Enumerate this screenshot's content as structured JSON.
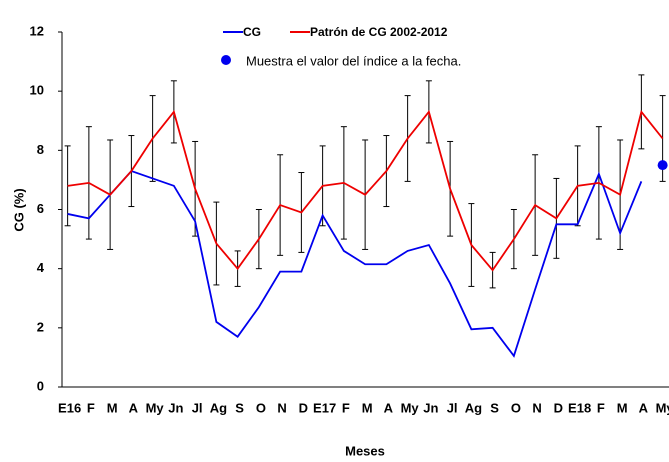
{
  "chart_data": {
    "type": "line",
    "y_label": "CG (%)",
    "x_label": "Meses",
    "categories": [
      "E16",
      "F",
      "M",
      "A",
      "My",
      "Jn",
      "Jl",
      "Ag",
      "S",
      "O",
      "N",
      "D",
      "E17",
      "F",
      "M",
      "A",
      "My",
      "Jn",
      "Jl",
      "Ag",
      "S",
      "O",
      "N",
      "D",
      "E18",
      "F",
      "M",
      "A",
      "My"
    ],
    "ylim": [
      0,
      12
    ],
    "yticks": [
      0,
      2,
      4,
      6,
      8,
      10,
      12
    ],
    "series": [
      {
        "name": "CG",
        "color": "#0000ee",
        "values": [
          5.85,
          5.7,
          6.5,
          7.3,
          7.05,
          6.8,
          5.6,
          2.2,
          1.7,
          2.7,
          3.9,
          3.9,
          5.8,
          4.6,
          4.15,
          4.15,
          4.6,
          4.8,
          3.5,
          1.95,
          2.0,
          1.05,
          3.3,
          5.5,
          5.5,
          7.2,
          5.2,
          6.95,
          null
        ]
      },
      {
        "name": "Patrón  de CG 2002-2012",
        "color": "#ee0000",
        "values": [
          6.8,
          6.9,
          6.5,
          7.3,
          8.4,
          9.3,
          6.7,
          4.85,
          4.0,
          5.0,
          6.15,
          5.9,
          6.8,
          6.9,
          6.5,
          7.3,
          8.4,
          9.3,
          6.7,
          4.8,
          3.95,
          5.0,
          6.15,
          5.7,
          6.8,
          6.9,
          6.5,
          9.3,
          8.4
        ],
        "error": [
          1.35,
          1.9,
          1.85,
          1.2,
          1.45,
          1.05,
          1.6,
          1.4,
          0.6,
          1.0,
          1.7,
          1.35,
          1.35,
          1.9,
          1.85,
          1.2,
          1.45,
          1.05,
          1.6,
          1.4,
          0.6,
          1.0,
          1.7,
          1.35,
          1.35,
          1.9,
          1.85,
          1.25,
          1.45
        ]
      },
      {
        "name": "Muestra el valor del índice a la fecha.",
        "color": "#0000ee",
        "marker": "dot",
        "values": [
          null,
          null,
          null,
          null,
          null,
          null,
          null,
          null,
          null,
          null,
          null,
          null,
          null,
          null,
          null,
          null,
          null,
          null,
          null,
          null,
          null,
          null,
          null,
          null,
          null,
          null,
          null,
          null,
          7.5
        ]
      }
    ]
  }
}
